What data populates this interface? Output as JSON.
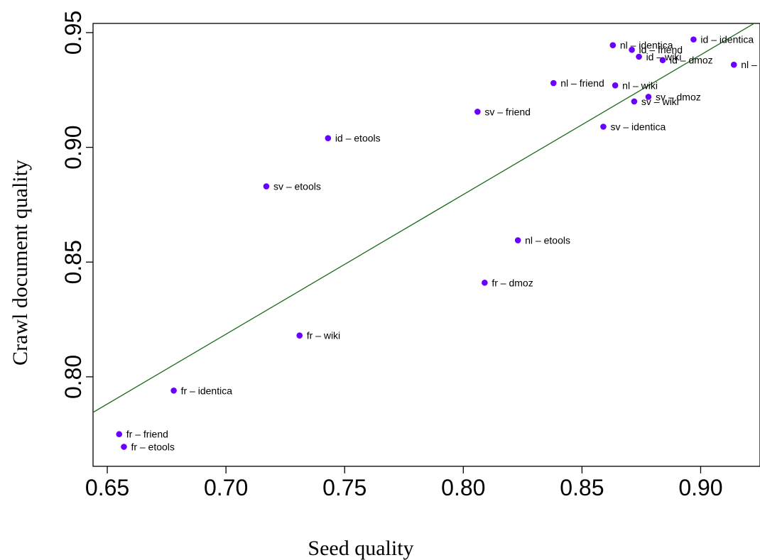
{
  "chart_data": {
    "type": "scatter",
    "title": "",
    "xlabel": "Seed quality",
    "ylabel": "Crawl document quality",
    "xlim": [
      0.644,
      0.925
    ],
    "ylim": [
      0.761,
      0.954
    ],
    "x_ticks": [
      "0.65",
      "0.70",
      "0.75",
      "0.80",
      "0.85",
      "0.90"
    ],
    "y_ticks": [
      "0.80",
      "0.85",
      "0.90",
      "0.95"
    ],
    "grid": false,
    "point_color": "#6a00ff",
    "line_color": "#1a6b1a",
    "fit_line": {
      "x": [
        0.644,
        0.925
      ],
      "y": [
        0.7845,
        0.9555
      ]
    },
    "points": [
      {
        "label": "id – identica",
        "x": 0.897,
        "y": 0.947
      },
      {
        "label": "nl – identica",
        "x": 0.863,
        "y": 0.9445
      },
      {
        "label": "id – friend",
        "x": 0.871,
        "y": 0.9425
      },
      {
        "label": "id – wiki",
        "x": 0.874,
        "y": 0.9395
      },
      {
        "label": "id – dmoz",
        "x": 0.884,
        "y": 0.938
      },
      {
        "label": "nl – dmoz",
        "x": 0.914,
        "y": 0.936
      },
      {
        "label": "nl – friend",
        "x": 0.838,
        "y": 0.928
      },
      {
        "label": "nl – wiki",
        "x": 0.864,
        "y": 0.927
      },
      {
        "label": "sv – dmoz",
        "x": 0.878,
        "y": 0.922
      },
      {
        "label": "sv – wiki",
        "x": 0.872,
        "y": 0.92
      },
      {
        "label": "sv – friend",
        "x": 0.806,
        "y": 0.9155
      },
      {
        "label": "sv – identica",
        "x": 0.859,
        "y": 0.909
      },
      {
        "label": "id – etools",
        "x": 0.743,
        "y": 0.904
      },
      {
        "label": "sv – etools",
        "x": 0.717,
        "y": 0.883
      },
      {
        "label": "nl – etools",
        "x": 0.823,
        "y": 0.8595
      },
      {
        "label": "fr – dmoz",
        "x": 0.809,
        "y": 0.841
      },
      {
        "label": "fr – wiki",
        "x": 0.731,
        "y": 0.818
      },
      {
        "label": "fr – identica",
        "x": 0.678,
        "y": 0.794
      },
      {
        "label": "fr – friend",
        "x": 0.655,
        "y": 0.775
      },
      {
        "label": "fr – etools",
        "x": 0.657,
        "y": 0.7695
      }
    ]
  }
}
